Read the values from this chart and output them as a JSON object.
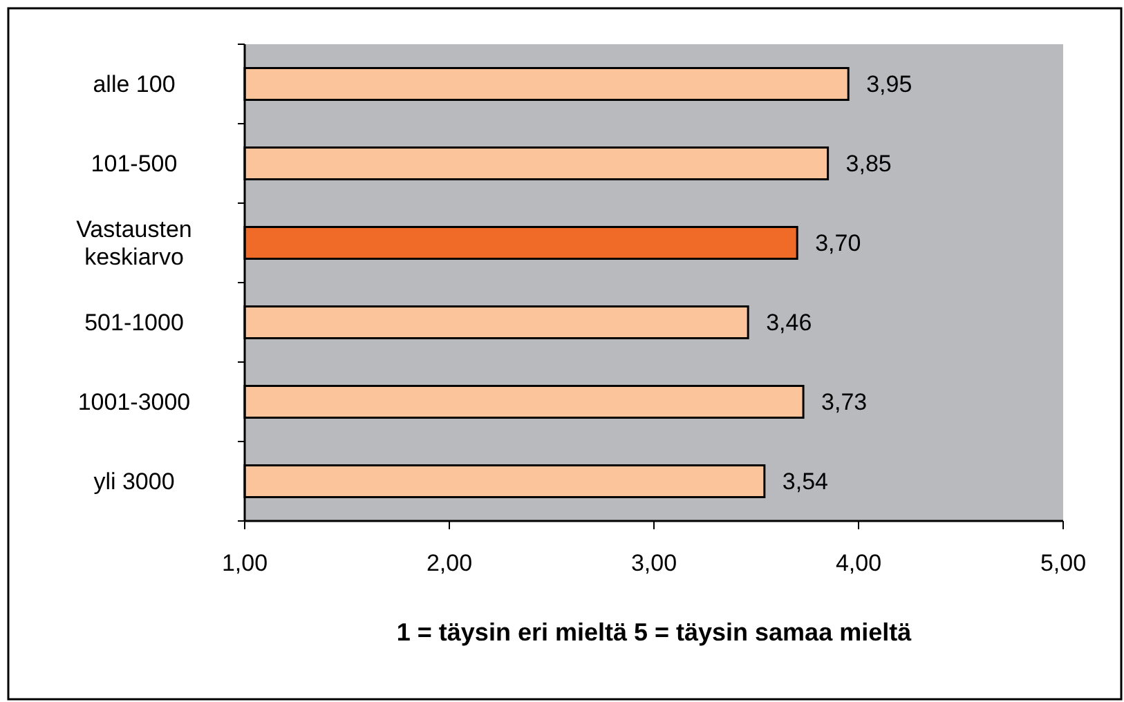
{
  "chart_data": {
    "type": "bar",
    "orientation": "horizontal",
    "categories": [
      "alle 100",
      "101-500",
      "Vastausten keskiarvo",
      "501-1000",
      "1001-3000",
      "yli 3000"
    ],
    "values": [
      3.95,
      3.85,
      3.7,
      3.46,
      3.73,
      3.54
    ],
    "colors": [
      "#fcc49a",
      "#fcc49a",
      "#f06a28",
      "#fcc49a",
      "#fcc49a",
      "#fcc49a"
    ],
    "value_labels": [
      "3,95",
      "3,85",
      "3,70",
      "3,46",
      "3,73",
      "3,54"
    ],
    "xlim": [
      1,
      5
    ],
    "xticks": [
      {
        "value": 1,
        "label": "1,00"
      },
      {
        "value": 2,
        "label": "2,00"
      },
      {
        "value": 3,
        "label": "3,00"
      },
      {
        "value": 4,
        "label": "4,00"
      },
      {
        "value": 5,
        "label": "5,00"
      }
    ],
    "xlabel": "1 = täysin eri mieltä  5 = täysin samaa mieltä",
    "grid": false
  }
}
